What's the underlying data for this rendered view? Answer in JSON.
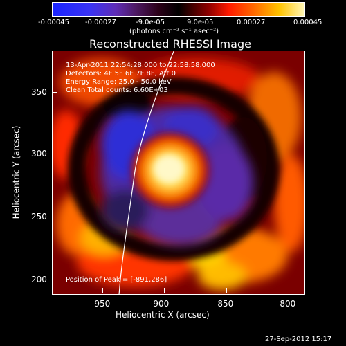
{
  "colorbar": {
    "tick_labels": [
      "-0.00045",
      "-0.00027",
      "-9.0e-05",
      "9.0e-05",
      "0.00027",
      "0.00045"
    ],
    "units_label": "(photons cm⁻² s⁻¹ asec⁻²)"
  },
  "plot": {
    "title": "Reconstructed RHESSI Image",
    "info_lines": [
      "13-Apr-2011 22:54:28.000 to 22:58:58.000",
      "Detectors: 4F 5F 6F 7F 8F, Att 0",
      "Energy Range: 25.0 - 50.0 keV",
      "Clean     Total counts: 6.60E+03"
    ],
    "peak_label": "Position of Peak = [-891,286]",
    "x_axis": {
      "label": "Heliocentric X (arcsec)",
      "ticks": [
        "-950",
        "-900",
        "-850",
        "-800"
      ]
    },
    "y_axis": {
      "label": "Heliocentric Y (arcsec)",
      "ticks": [
        "200",
        "250",
        "300",
        "350"
      ]
    }
  },
  "footer": {
    "timestamp": "27-Sep-2012 15:17"
  },
  "colors": {
    "background": "#000000",
    "foreground": "#ffffff",
    "blue_low": "#2d2cd0",
    "purple": "#5a2aa8",
    "red": "#d30b00",
    "orange": "#ff7a00",
    "yellow": "#ffe86a"
  }
}
